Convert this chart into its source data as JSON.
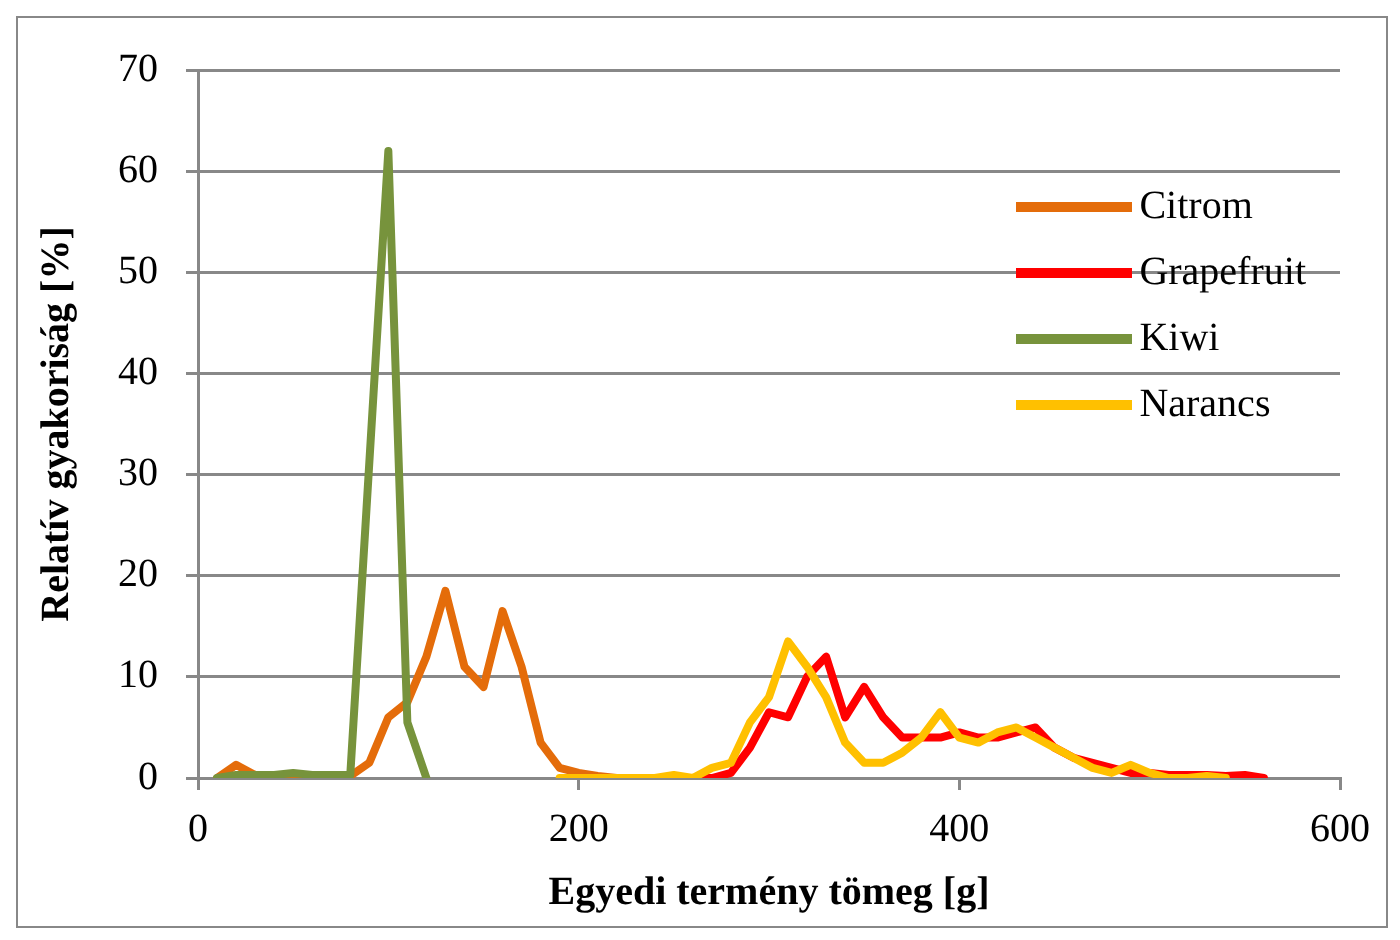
{
  "chart_data": {
    "type": "line",
    "xlabel": "Egyedi termény tömeg [g]",
    "ylabel": "Relatív gyakoriság [%]",
    "xlim": [
      0,
      600
    ],
    "xticks": [
      0,
      200,
      400,
      600
    ],
    "ylim": [
      0,
      70
    ],
    "yticks": [
      0,
      10,
      20,
      30,
      40,
      50,
      60,
      70
    ],
    "grid": "y",
    "legend": "top right",
    "marker": "none",
    "line_style": "solid",
    "series": [
      {
        "name": "Citrom",
        "color": "#e46c0a",
        "x": [
          10,
          20,
          30,
          40,
          50,
          60,
          70,
          80,
          90,
          100,
          110,
          120,
          130,
          140,
          150,
          160,
          170,
          180,
          190,
          200,
          210,
          220
        ],
        "values": [
          0,
          1.3,
          0.3,
          0.2,
          0.3,
          0.2,
          0.2,
          0.2,
          1.5,
          6,
          7.5,
          12,
          18.5,
          11,
          9,
          16.5,
          11,
          3.5,
          1,
          0.5,
          0.2,
          0
        ]
      },
      {
        "name": "Grapefruit",
        "color": "#ff0000",
        "x": [
          250,
          260,
          270,
          280,
          290,
          300,
          310,
          320,
          330,
          340,
          350,
          360,
          370,
          380,
          390,
          400,
          410,
          420,
          430,
          440,
          450,
          460,
          470,
          480,
          490,
          500,
          510,
          520,
          530,
          540,
          550,
          560
        ],
        "values": [
          0,
          0,
          0,
          0.5,
          3,
          6.5,
          6,
          10,
          12,
          6,
          9,
          6,
          4,
          4,
          4,
          4.5,
          4,
          4,
          4.5,
          5,
          3,
          2,
          1.5,
          1,
          0.5,
          0.5,
          0.3,
          0.3,
          0.3,
          0.2,
          0.3,
          0
        ]
      },
      {
        "name": "Kiwi",
        "color": "#77933c",
        "x": [
          10,
          20,
          30,
          40,
          50,
          60,
          70,
          80,
          100,
          110,
          120
        ],
        "values": [
          0,
          0.3,
          0.3,
          0.3,
          0.5,
          0.3,
          0.3,
          0.3,
          62,
          5.5,
          0
        ]
      },
      {
        "name": "Narancs",
        "color": "#ffc000",
        "x": [
          190,
          200,
          210,
          220,
          230,
          240,
          250,
          260,
          270,
          280,
          290,
          300,
          310,
          320,
          330,
          340,
          350,
          360,
          370,
          380,
          390,
          400,
          410,
          420,
          430,
          440,
          450,
          460,
          470,
          480,
          490,
          500,
          510,
          520,
          530,
          540
        ],
        "values": [
          0,
          0,
          0,
          0,
          0,
          0,
          0.3,
          0,
          1,
          1.5,
          5.5,
          8,
          13.5,
          11,
          8,
          3.5,
          1.5,
          1.5,
          2.5,
          4,
          6.5,
          4,
          3.5,
          4.5,
          5,
          4,
          3,
          2,
          1,
          0.5,
          1.3,
          0.5,
          0,
          0,
          0.2,
          0
        ]
      }
    ]
  }
}
